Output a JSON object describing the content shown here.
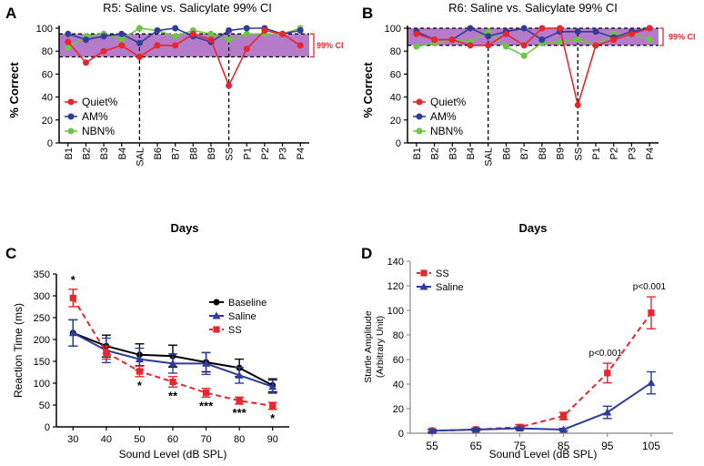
{
  "chart_data": [
    {
      "panel": "A",
      "type": "line",
      "title": "R5: Saline vs. Salicylate 99% CI",
      "xlabel": "Days",
      "ylabel": "% Correct",
      "ylim": [
        0,
        100
      ],
      "yticks": [
        0,
        20,
        40,
        60,
        80,
        100
      ],
      "categories": [
        "B1",
        "B2",
        "B3",
        "B4",
        "SAL",
        "B6",
        "B7",
        "B8",
        "B9",
        "SS",
        "P1",
        "P2",
        "P3",
        "P4"
      ],
      "ci_band": [
        75,
        95
      ],
      "ci_label": "99% CI",
      "markers_at": [
        "SAL",
        "SS"
      ],
      "legend_position": "bottom-left",
      "colors": {
        "Quiet%": "#e8262b",
        "AM%": "#2e3d99",
        "NBN%": "#6ec544",
        "band": "#9c4fb8",
        "ci": "#e8262b"
      },
      "series": [
        {
          "name": "Quiet%",
          "values": [
            88,
            70,
            80,
            85,
            75,
            85,
            85,
            95,
            90,
            50,
            82,
            98,
            95,
            85
          ]
        },
        {
          "name": "AM%",
          "values": [
            95,
            90,
            93,
            95,
            87,
            98,
            100,
            93,
            88,
            98,
            100,
            100,
            95,
            98
          ]
        },
        {
          "name": "NBN%",
          "values": [
            83,
            93,
            95,
            90,
            100,
            98,
            93,
            98,
            95,
            90,
            95,
            95,
            95,
            100
          ]
        }
      ]
    },
    {
      "panel": "B",
      "type": "line",
      "title": "R6: Saline vs. Salicylate 99% CI",
      "xlabel": "Days",
      "ylabel": "% Correct",
      "ylim": [
        0,
        100
      ],
      "yticks": [
        0,
        20,
        40,
        60,
        80,
        100
      ],
      "categories": [
        "B1",
        "B2",
        "B3",
        "B4",
        "SAL",
        "B6",
        "B7",
        "B8",
        "B9",
        "SS",
        "P1",
        "P2",
        "P3",
        "P4"
      ],
      "ci_band": [
        85,
        100
      ],
      "ci_label": "99% CI",
      "markers_at": [
        "SAL",
        "SS"
      ],
      "legend_position": "bottom-left",
      "colors": {
        "Quiet%": "#e8262b",
        "AM%": "#2e3d99",
        "NBN%": "#6ec544",
        "band": "#9c4fb8",
        "ci": "#e8262b"
      },
      "series": [
        {
          "name": "Quiet%",
          "values": [
            95,
            90,
            90,
            85,
            85,
            95,
            85,
            100,
            100,
            33,
            85,
            90,
            95,
            100
          ]
        },
        {
          "name": "AM%",
          "values": [
            97,
            90,
            90,
            100,
            93,
            97,
            100,
            90,
            97,
            97,
            97,
            92,
            97,
            100
          ]
        },
        {
          "name": "NBN%",
          "values": [
            84,
            87,
            90,
            88,
            97,
            84,
            76,
            87,
            88,
            90,
            85,
            95,
            95,
            90
          ]
        }
      ]
    },
    {
      "panel": "C",
      "type": "line",
      "title": "",
      "xlabel": "Sound Level (dB SPL)",
      "ylabel": "Reaction Time (ms)",
      "x": [
        30,
        40,
        50,
        60,
        70,
        80,
        90
      ],
      "xlim": [
        25,
        95
      ],
      "ylim": [
        0,
        350
      ],
      "yticks": [
        0,
        50,
        100,
        150,
        200,
        250,
        300,
        350
      ],
      "legend_position": "top-right",
      "colors": {
        "Baseline": "#000000",
        "Saline": "#2e3d99",
        "SS": "#e8262b"
      },
      "series": [
        {
          "name": "Baseline",
          "values": [
            215,
            185,
            165,
            162,
            148,
            135,
            95
          ],
          "errors": [
            30,
            25,
            25,
            25,
            22,
            20,
            15
          ],
          "dashed": false
        },
        {
          "name": "Saline",
          "values": [
            215,
            175,
            155,
            145,
            145,
            118,
            92
          ],
          "errors": [
            30,
            28,
            25,
            22,
            25,
            18,
            15
          ],
          "dashed": false
        },
        {
          "name": "SS",
          "values": [
            295,
            170,
            127,
            103,
            78,
            60,
            48
          ],
          "errors": [
            20,
            15,
            12,
            12,
            10,
            8,
            8
          ],
          "dashed": true
        }
      ],
      "annotations": [
        {
          "x": 30,
          "text": "*",
          "side": "above"
        },
        {
          "x": 50,
          "text": "*",
          "side": "below"
        },
        {
          "x": 60,
          "text": "**",
          "side": "below"
        },
        {
          "x": 70,
          "text": "***",
          "side": "below"
        },
        {
          "x": 80,
          "text": "***",
          "side": "below"
        },
        {
          "x": 90,
          "text": "*",
          "side": "below"
        }
      ]
    },
    {
      "panel": "D",
      "type": "line",
      "title": "",
      "xlabel": "Sound Level (dB SPL)",
      "ylabel_line1": "Startle Amplitude",
      "ylabel_line2": "(Arbitrary Unit)",
      "x": [
        55,
        65,
        75,
        85,
        95,
        105
      ],
      "xlim": [
        50,
        110
      ],
      "ylim": [
        0,
        140
      ],
      "yticks": [
        0,
        20,
        40,
        60,
        80,
        100,
        120,
        140
      ],
      "legend_position": "top-left",
      "colors": {
        "SS": "#e8262b",
        "Saline": "#2e3d99"
      },
      "series": [
        {
          "name": "SS",
          "values": [
            2,
            3,
            5,
            14,
            49,
            98
          ],
          "errors": [
            1,
            1,
            2,
            3,
            8,
            13
          ],
          "dashed": true,
          "marker": "square"
        },
        {
          "name": "Saline",
          "values": [
            2,
            3,
            4,
            3,
            17,
            41
          ],
          "errors": [
            1,
            1,
            1,
            1,
            5,
            9
          ],
          "dashed": false,
          "marker": "triangle"
        }
      ],
      "annotations": [
        {
          "x": 95,
          "text": "p<0.001"
        },
        {
          "x": 105,
          "text": "p<0.001"
        }
      ]
    }
  ],
  "panel_letters": [
    "A",
    "B",
    "C",
    "D"
  ]
}
